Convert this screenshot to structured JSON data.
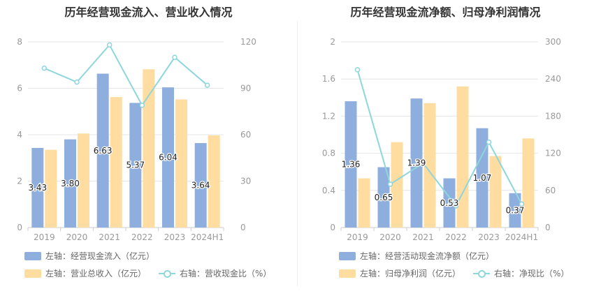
{
  "colors": {
    "bar_left": "#8eaede",
    "bar_right": "#ffdca0",
    "line": "#8ed6dc",
    "grid": "#e6e6e6",
    "tick": "#999999"
  },
  "chart_data": [
    {
      "type": "bar+line",
      "title": "历年经营现金流入、营业收入情况",
      "categories": [
        "2019",
        "2020",
        "2021",
        "2022",
        "2023",
        "2024H1"
      ],
      "y_left": {
        "min": 0,
        "max": 8,
        "ticks": [
          "0",
          "2",
          "4",
          "6",
          "8"
        ]
      },
      "y_right": {
        "min": 0,
        "max": 120,
        "ticks": [
          "0",
          "30",
          "60",
          "90",
          "120"
        ]
      },
      "series": [
        {
          "name": "左轴：经营现金流入（亿元）",
          "axis": "left",
          "kind": "bar",
          "values": [
            3.43,
            3.8,
            6.63,
            5.37,
            6.04,
            3.64
          ],
          "labels": [
            "3.43",
            "3.80",
            "6.63",
            "5.37",
            "6.04",
            "3.64"
          ]
        },
        {
          "name": "左轴：营业总收入（亿元）",
          "axis": "left",
          "kind": "bar",
          "values": [
            3.35,
            4.05,
            5.62,
            6.82,
            5.52,
            3.97
          ]
        },
        {
          "name": "右轴：营收现金比（%）",
          "axis": "right",
          "kind": "line",
          "values": [
            103,
            94,
            118,
            79,
            110,
            92
          ]
        }
      ]
    },
    {
      "type": "bar+line",
      "title": "历年经营现金流净额、归母净利润情况",
      "categories": [
        "2019",
        "2020",
        "2021",
        "2022",
        "2023",
        "2024H1"
      ],
      "y_left": {
        "min": 0,
        "max": 2,
        "ticks": [
          "0",
          "0.4",
          "0.8",
          "1.2",
          "1.6",
          "2"
        ]
      },
      "y_right": {
        "min": 0,
        "max": 300,
        "ticks": [
          "0",
          "60",
          "120",
          "180",
          "240",
          "300"
        ]
      },
      "series": [
        {
          "name": "左轴：经营活动现金流净额（亿元）",
          "axis": "left",
          "kind": "bar",
          "values": [
            1.36,
            0.65,
            1.39,
            0.53,
            1.07,
            0.37
          ],
          "labels": [
            "1.36",
            "0.65",
            "1.39",
            "0.53",
            "1.07",
            "0.37"
          ]
        },
        {
          "name": "左轴：归母净利润（亿元）",
          "axis": "left",
          "kind": "bar",
          "values": [
            0.53,
            0.92,
            1.34,
            1.52,
            0.77,
            0.96
          ]
        },
        {
          "name": "右轴：净现比（%）",
          "axis": "right",
          "kind": "line",
          "values": [
            255,
            70,
            104,
            35,
            138,
            38
          ]
        }
      ]
    }
  ]
}
